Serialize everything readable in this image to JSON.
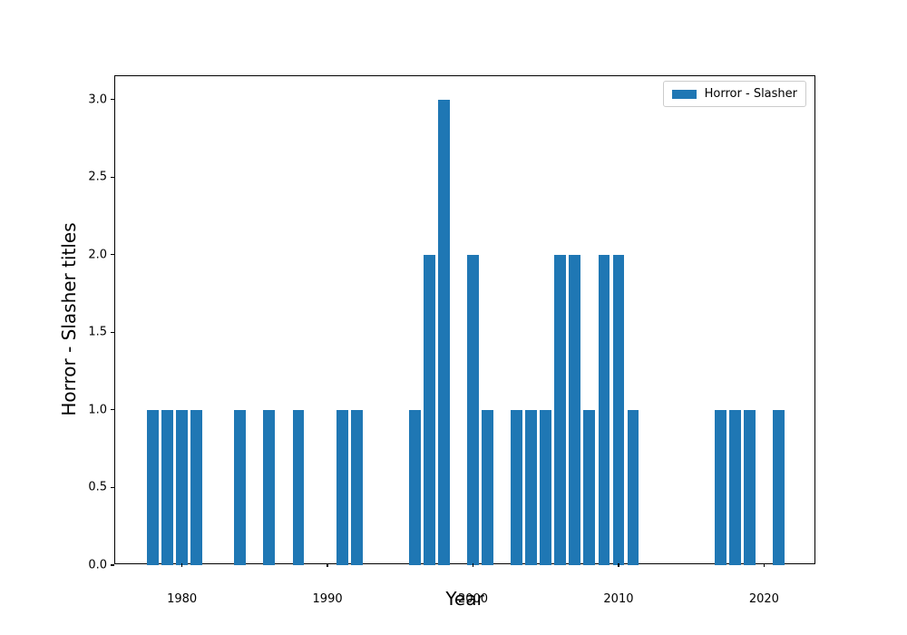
{
  "chart_data": {
    "type": "bar",
    "title": "",
    "xlabel": "Year",
    "ylabel": "Horror - Slasher titles",
    "x": [
      1978,
      1979,
      1980,
      1981,
      1984,
      1986,
      1988,
      1991,
      1992,
      1996,
      1997,
      1998,
      2000,
      2001,
      2003,
      2004,
      2005,
      2006,
      2007,
      2008,
      2009,
      2010,
      2011,
      2017,
      2018,
      2019,
      2021
    ],
    "values": [
      1,
      1,
      1,
      1,
      1,
      1,
      1,
      1,
      1,
      1,
      2,
      3,
      2,
      1,
      1,
      1,
      1,
      2,
      2,
      1,
      2,
      2,
      1,
      1,
      1,
      1,
      1
    ],
    "bar_color": "#1f77b4",
    "bar_width": 0.8,
    "xlim": [
      1975.41,
      2023.59
    ],
    "ylim": [
      0,
      3.15
    ],
    "xticks": [
      1980,
      1990,
      2000,
      2010,
      2020
    ],
    "xtick_labels": [
      "1980",
      "1990",
      "2000",
      "2010",
      "2020"
    ],
    "yticks": [
      0,
      0.5,
      1,
      1.5,
      2,
      2.5,
      3
    ],
    "ytick_labels": [
      "0.0",
      "0.5",
      "1.0",
      "1.5",
      "2.0",
      "2.5",
      "3.0"
    ],
    "grid": false,
    "legend": {
      "position": "upper-right",
      "entries": [
        {
          "label": "Horror - Slasher",
          "color": "#1f77b4"
        }
      ]
    }
  }
}
